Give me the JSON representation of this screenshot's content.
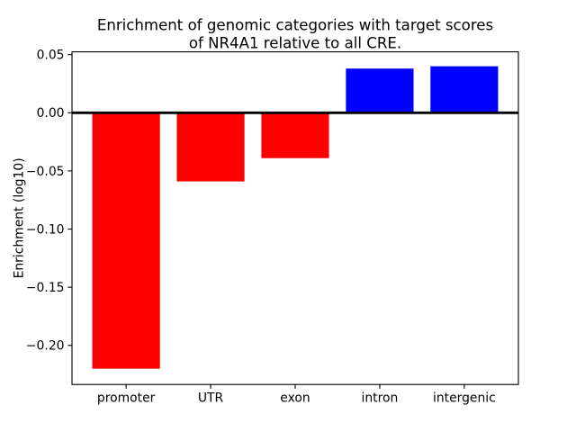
{
  "chart_data": {
    "type": "bar",
    "title": "Enrichment of genomic categories with target scores\nof NR4A1 relative to all CRE.",
    "title_lines": [
      "Enrichment of genomic categories with target scores",
      "of NR4A1 relative to all CRE."
    ],
    "ylabel": "Enrichment (log10)",
    "categories": [
      "promoter",
      "UTR",
      "exon",
      "intron",
      "intergenic"
    ],
    "values": [
      -0.22,
      -0.059,
      -0.039,
      0.038,
      0.04
    ],
    "bar_colors": [
      "#ff0000",
      "#ff0000",
      "#ff0000",
      "#0000ff",
      "#0000ff"
    ],
    "negative_color": "#ff0000",
    "positive_color": "#0000ff",
    "yticks": [
      0.05,
      0.0,
      -0.05,
      -0.1,
      -0.15,
      -0.2
    ],
    "ytick_labels": [
      "0.05",
      "0.00",
      "−0.05",
      "−0.10",
      "−0.15",
      "−0.20"
    ],
    "ylim": [
      -0.2336,
      0.0524
    ],
    "bar_width": 0.8,
    "x_margin": 0.24,
    "zero_line_value": 0,
    "zero_line_color": "#000000",
    "spine_color": "#000000",
    "background_color": "#ffffff",
    "grid": false
  }
}
